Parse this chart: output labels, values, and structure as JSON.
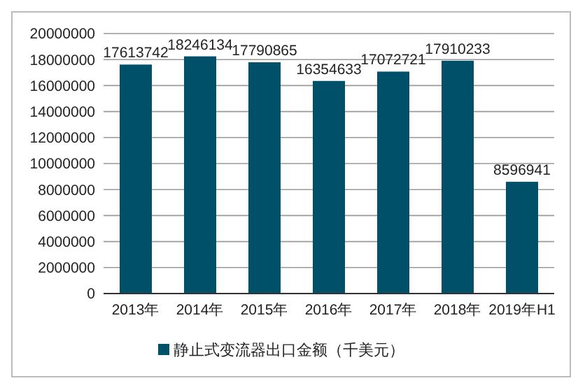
{
  "chart_data": {
    "type": "bar",
    "categories": [
      "2013年",
      "2014年",
      "2015年",
      "2016年",
      "2017年",
      "2018年",
      "2019年H1"
    ],
    "series": [
      {
        "name": "静止式变流器出口金额（千美元）",
        "color": "#00506a",
        "values": [
          17613742,
          18246134,
          17790865,
          16354633,
          17072721,
          17910233,
          8596941
        ]
      }
    ],
    "ylim": [
      0,
      20000000
    ],
    "yticks": [
      0,
      2000000,
      4000000,
      6000000,
      8000000,
      10000000,
      12000000,
      14000000,
      16000000,
      18000000,
      20000000
    ],
    "grid": "y",
    "legend": "bottom",
    "data_labels": true
  }
}
